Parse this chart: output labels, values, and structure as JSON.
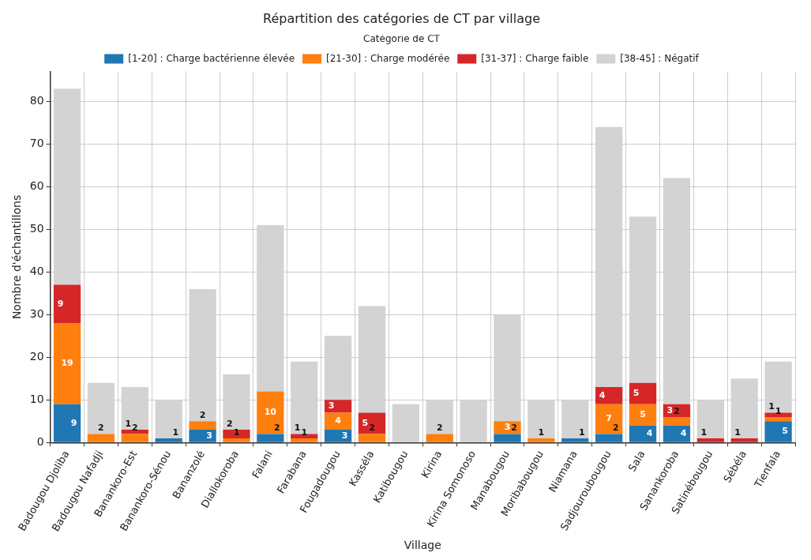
{
  "chart_data": {
    "type": "bar",
    "title": "Répartition des catégories de CT par village",
    "xlabel": "Village",
    "ylabel": "Nombre d'échantillons",
    "legend_title": "Catégorie de CT",
    "categories": [
      "Badougou Djoliba",
      "Badougou Nafadji",
      "Banankoro-Est",
      "Banankoro-Sénou",
      "Bananzolé",
      "Diallokoroba",
      "Falani",
      "Farabana",
      "Fougadougou",
      "Kasséla",
      "Katibougou",
      "Kirina",
      "Kirina Somonoso",
      "Manabougou",
      "Moribabougou",
      "Niamana",
      "Sadjouroubougou",
      "Sala",
      "Sanankoroba",
      "Satinébougou",
      "Sébéla",
      "Tienfala"
    ],
    "stacked": true,
    "legend": "top",
    "grid": true,
    "ylim": [
      0,
      87
    ],
    "yticks": [
      0,
      10,
      20,
      30,
      40,
      50,
      60,
      70,
      80
    ],
    "series": [
      {
        "name": "[1-20] : Charge bactérienne élevée",
        "color": "#1f77b4",
        "values": [
          9,
          0,
          0,
          1,
          3,
          0,
          2,
          0,
          3,
          0,
          0,
          0,
          0,
          2,
          0,
          1,
          2,
          4,
          4,
          0,
          0,
          5
        ],
        "value_labels": [
          "9",
          null,
          null,
          "1",
          "3",
          null,
          "2",
          null,
          "3",
          null,
          null,
          null,
          null,
          "2",
          null,
          "1",
          "2",
          "4",
          "4",
          null,
          null,
          "5"
        ]
      },
      {
        "name": "[21-30] : Charge modérée",
        "color": "#ff7f0e",
        "values": [
          19,
          2,
          2,
          0,
          2,
          1,
          10,
          1,
          4,
          2,
          0,
          2,
          0,
          3,
          1,
          0,
          7,
          5,
          2,
          0,
          0,
          1
        ],
        "value_labels": [
          "19",
          "2",
          "2",
          null,
          "2",
          "1",
          "10",
          "1",
          "4",
          "2",
          null,
          "2",
          null,
          "3",
          "1",
          null,
          "7",
          "5",
          "2",
          null,
          null,
          "1"
        ]
      },
      {
        "name": "[31-37] : Charge faible",
        "color": "#d62728",
        "values": [
          9,
          0,
          1,
          0,
          0,
          2,
          0,
          1,
          3,
          5,
          0,
          0,
          0,
          0,
          0,
          0,
          4,
          5,
          3,
          1,
          1,
          1
        ],
        "value_labels": [
          "9",
          null,
          "1",
          null,
          null,
          "2",
          null,
          "1",
          "3",
          "5",
          null,
          null,
          null,
          null,
          null,
          null,
          "4",
          "5",
          "3",
          "1",
          "1",
          "1"
        ]
      },
      {
        "name": "[38-45] : Négatif",
        "color": "#d3d3d3",
        "values": [
          46,
          12,
          10,
          9,
          31,
          13,
          39,
          17,
          15,
          25,
          9,
          8,
          10,
          25,
          9,
          9,
          61,
          39,
          53,
          9,
          14,
          12
        ]
      }
    ]
  }
}
